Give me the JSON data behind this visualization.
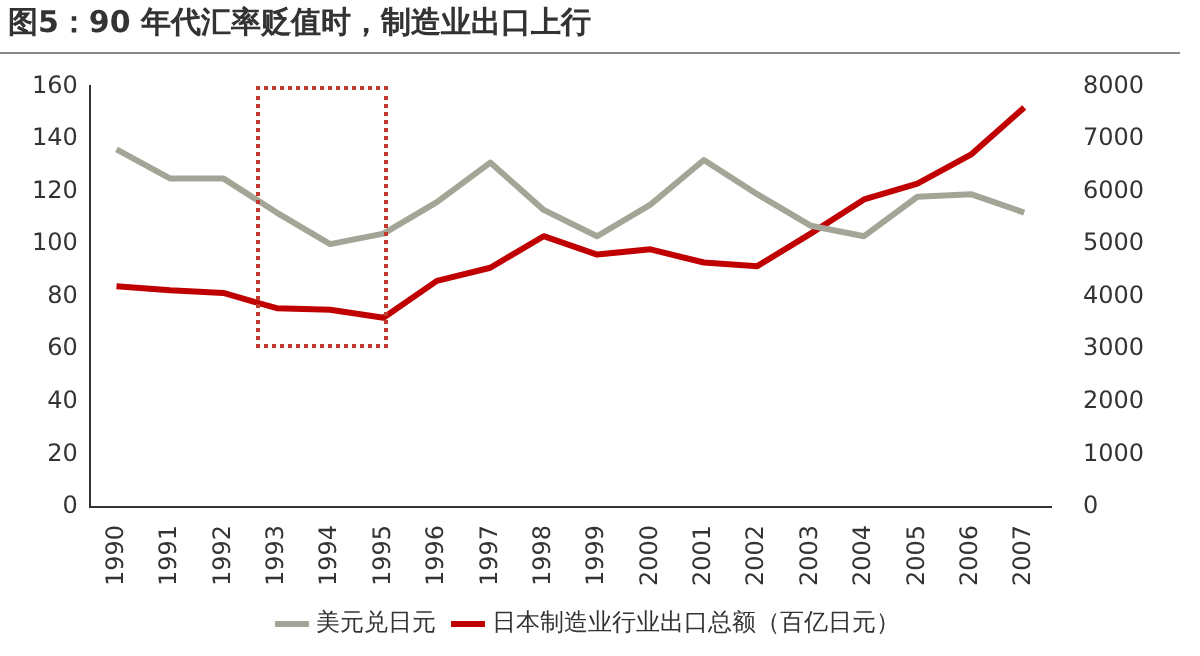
{
  "chart_data": {
    "type": "line",
    "title": "图5：90 年代汇率贬值时，制造业出口上行",
    "categories": [
      "1990",
      "1991",
      "1992",
      "1993",
      "1994",
      "1995",
      "1996",
      "1997",
      "1998",
      "1999",
      "2000",
      "2001",
      "2002",
      "2003",
      "2004",
      "2005",
      "2006",
      "2007"
    ],
    "series": [
      {
        "name": "美元兑日元",
        "color": "#a5a597",
        "values": [
          136,
          125,
          125,
          112,
          100,
          104,
          116,
          131,
          113,
          103,
          115,
          132,
          119,
          107,
          103,
          118,
          119,
          112
        ]
      },
      {
        "name": "日本制造业行业出口总额（百亿日元）",
        "color": "#c00000",
        "axis": "y2",
        "values": [
          4200,
          4120,
          4070,
          3780,
          3750,
          3600,
          4300,
          4550,
          5150,
          4800,
          4900,
          4650,
          4580,
          5200,
          5850,
          6150,
          6700,
          7600
        ]
      }
    ],
    "ylim": [
      0,
      160
    ],
    "yticks": [
      0,
      20,
      40,
      60,
      80,
      100,
      120,
      140,
      160
    ],
    "y2lim": [
      0,
      8000
    ],
    "y2ticks": [
      0,
      1000,
      2000,
      3000,
      4000,
      5000,
      6000,
      7000,
      8000
    ],
    "grid": false,
    "legend": "bottom",
    "marker": "none",
    "line_style": "solid"
  }
}
